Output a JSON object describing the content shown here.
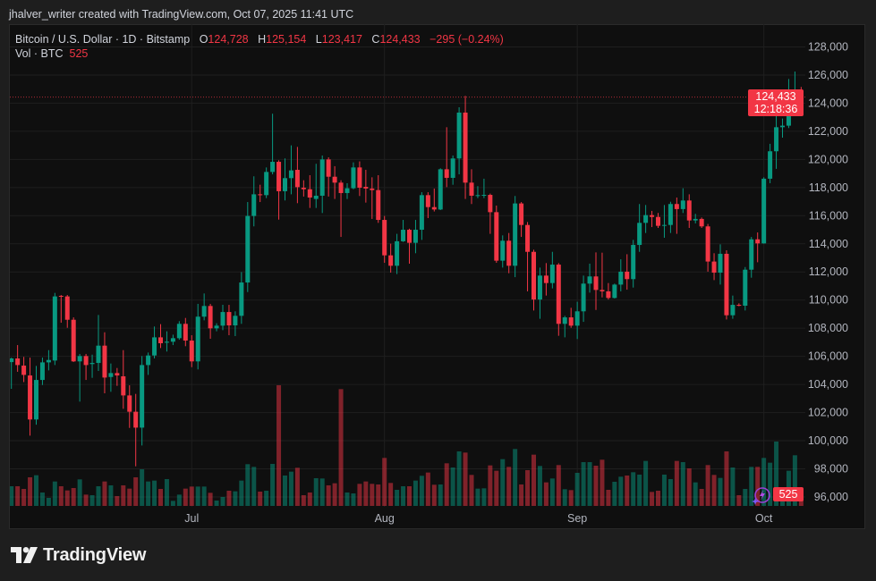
{
  "credit": "jhalver_writer created with TradingView.com, Oct 07, 2025 11:41 UTC",
  "legend": {
    "symbol": "Bitcoin / U.S. Dollar · 1D · Bitstamp",
    "open_label": "O",
    "open": "124,728",
    "high_label": "H",
    "high": "125,154",
    "low_label": "L",
    "low": "123,417",
    "close_label": "C",
    "close": "124,433",
    "change": "−295 (−0.24%)",
    "volume_label": "Vol · BTC",
    "volume": "525"
  },
  "price_badge": {
    "price": "124,433",
    "countdown": "12:18:36"
  },
  "volume_badge": "525",
  "logo_text": "TradingView",
  "icons": [
    "tradingview-logo-icon",
    "assistant-lightning-icon"
  ],
  "colors": {
    "up": "#089981",
    "down": "#f23645",
    "background": "#0f0f0f",
    "frame": "#1e1e1e"
  },
  "chart_data": {
    "type": "candlestick",
    "title": "Bitcoin / U.S. Dollar · 1D · Bitstamp",
    "interval": "1D",
    "ylim": [
      95300,
      129620
    ],
    "y_scale": "linear",
    "grid": true,
    "y_ticks": [
      128000,
      126000,
      124000,
      122000,
      120000,
      118000,
      116000,
      114000,
      112000,
      110000,
      108000,
      106000,
      104000,
      102000,
      100000,
      98000,
      96000
    ],
    "y_tick_labels": [
      "128,000",
      "126,000",
      "124,000",
      "122,000",
      "120,000",
      "118,000",
      "116,000",
      "114,000",
      "112,000",
      "110,000",
      "108,000",
      "106,000",
      "104,000",
      "102,000",
      "100,000",
      "98,000",
      "96,000"
    ],
    "x_ticks": [
      {
        "label": "Jul",
        "date": "2025-07-01"
      },
      {
        "label": "Aug",
        "date": "2025-08-01"
      },
      {
        "label": "Sep",
        "date": "2025-09-01"
      },
      {
        "label": "Oct",
        "date": "2025-10-01"
      }
    ],
    "last_price": 124433,
    "columns": [
      "date",
      "open",
      "high",
      "low",
      "close",
      "volume_btc"
    ],
    "candles": [
      [
        "2025-06-02",
        105590,
        105910,
        103690,
        105850,
        968
      ],
      [
        "2025-06-03",
        105850,
        106800,
        104900,
        105380,
        968
      ],
      [
        "2025-06-04",
        105340,
        105960,
        104170,
        104680,
        836
      ],
      [
        "2025-06-05",
        104640,
        105910,
        100360,
        101510,
        1408
      ],
      [
        "2025-06-06",
        101510,
        105320,
        101140,
        104320,
        1511
      ],
      [
        "2025-06-07",
        104320,
        105910,
        103960,
        105570,
        660
      ],
      [
        "2025-06-08",
        105570,
        106440,
        105000,
        105740,
        396
      ],
      [
        "2025-06-09",
        105700,
        110510,
        105380,
        110260,
        1203
      ],
      [
        "2025-06-10",
        110300,
        110360,
        108390,
        110260,
        968
      ],
      [
        "2025-06-11",
        110260,
        110360,
        108030,
        108600,
        763
      ],
      [
        "2025-06-12",
        108600,
        108770,
        105600,
        105640,
        880
      ],
      [
        "2025-06-13",
        105640,
        106170,
        102780,
        106020,
        1306
      ],
      [
        "2025-06-14",
        106020,
        106170,
        104320,
        105380,
        557
      ],
      [
        "2025-06-15",
        105450,
        106120,
        104470,
        105530,
        528
      ],
      [
        "2025-06-16",
        105530,
        108940,
        104960,
        106760,
        968
      ],
      [
        "2025-06-17",
        106760,
        107710,
        103370,
        104490,
        1203
      ],
      [
        "2025-06-18",
        104530,
        105490,
        103480,
        104810,
        1012
      ],
      [
        "2025-06-19",
        104810,
        105170,
        103900,
        104640,
        484
      ],
      [
        "2025-06-20",
        104580,
        106440,
        102270,
        103220,
        1012
      ],
      [
        "2025-06-21",
        103220,
        103940,
        100910,
        102060,
        851
      ],
      [
        "2025-06-22",
        102060,
        103330,
        98180,
        100930,
        1408
      ],
      [
        "2025-06-23",
        100930,
        106020,
        99660,
        105380,
        1804
      ],
      [
        "2025-06-24",
        105380,
        106270,
        104680,
        106060,
        1203
      ],
      [
        "2025-06-25",
        106060,
        108120,
        105850,
        107350,
        1247
      ],
      [
        "2025-06-26",
        107350,
        108290,
        106590,
        106930,
        836
      ],
      [
        "2025-06-27",
        106970,
        107780,
        106340,
        107040,
        1320
      ],
      [
        "2025-06-28",
        107040,
        107540,
        106800,
        107290,
        249
      ],
      [
        "2025-06-29",
        107290,
        108500,
        107180,
        108310,
        557
      ],
      [
        "2025-06-30",
        108310,
        108730,
        106720,
        107120,
        851
      ],
      [
        "2025-07-01",
        107120,
        107500,
        105230,
        105640,
        953
      ],
      [
        "2025-07-02",
        105640,
        109730,
        105070,
        108820,
        953
      ],
      [
        "2025-07-03",
        108820,
        110470,
        108560,
        109580,
        953
      ],
      [
        "2025-07-04",
        109580,
        109730,
        107250,
        107990,
        645
      ],
      [
        "2025-07-05",
        107990,
        108350,
        107780,
        108180,
        264
      ],
      [
        "2025-07-06",
        108180,
        109660,
        107860,
        109150,
        440
      ],
      [
        "2025-07-07",
        109150,
        109660,
        107500,
        108200,
        748
      ],
      [
        "2025-07-08",
        108200,
        109200,
        107440,
        108880,
        719
      ],
      [
        "2025-07-09",
        108880,
        111990,
        108310,
        111250,
        1247
      ],
      [
        "2025-07-10",
        111250,
        116970,
        110570,
        115980,
        2054
      ],
      [
        "2025-07-11",
        115980,
        118800,
        115240,
        117520,
        1922
      ],
      [
        "2025-07-12",
        117520,
        118200,
        116970,
        117460,
        704
      ],
      [
        "2025-07-13",
        117460,
        119430,
        117250,
        119110,
        748
      ],
      [
        "2025-07-14",
        119110,
        123250,
        118940,
        119830,
        2068
      ],
      [
        "2025-07-15",
        119830,
        119940,
        115720,
        117740,
        5941
      ],
      [
        "2025-07-16",
        117740,
        120070,
        117080,
        118670,
        1496
      ],
      [
        "2025-07-17",
        118670,
        121000,
        117520,
        119220,
        1687
      ],
      [
        "2025-07-18",
        119260,
        120890,
        116890,
        118030,
        1878
      ],
      [
        "2025-07-19",
        117990,
        118520,
        117360,
        117880,
        528
      ],
      [
        "2025-07-20",
        117880,
        118880,
        116550,
        117290,
        660
      ],
      [
        "2025-07-21",
        117190,
        119690,
        116550,
        117420,
        1364
      ],
      [
        "2025-07-22",
        117420,
        120280,
        116190,
        120000,
        1350
      ],
      [
        "2025-07-23",
        120000,
        120150,
        117360,
        118770,
        1012
      ],
      [
        "2025-07-24",
        118770,
        119520,
        117190,
        118350,
        1115
      ],
      [
        "2025-07-25",
        118350,
        118520,
        114490,
        117610,
        5750
      ],
      [
        "2025-07-26",
        117610,
        118310,
        117190,
        117950,
        660
      ],
      [
        "2025-07-27",
        117950,
        119790,
        117880,
        119430,
        616
      ],
      [
        "2025-07-28",
        119430,
        119860,
        117400,
        117990,
        1086
      ],
      [
        "2025-07-29",
        118050,
        119260,
        116930,
        117930,
        1203
      ],
      [
        "2025-07-30",
        117930,
        118730,
        115770,
        117820,
        1086
      ],
      [
        "2025-07-31",
        117820,
        118880,
        115490,
        115700,
        1056
      ],
      [
        "2025-08-01",
        115700,
        115980,
        112650,
        113180,
        2362
      ],
      [
        "2025-08-02",
        113180,
        114010,
        111950,
        112440,
        1130
      ],
      [
        "2025-08-03",
        112440,
        114710,
        111850,
        114180,
        792
      ],
      [
        "2025-08-04",
        114180,
        115700,
        114130,
        115000,
        968
      ],
      [
        "2025-08-05",
        115000,
        115070,
        112590,
        114070,
        968
      ],
      [
        "2025-08-06",
        114070,
        115700,
        113330,
        115000,
        1247
      ],
      [
        "2025-08-07",
        115000,
        117670,
        114280,
        117460,
        1482
      ],
      [
        "2025-08-08",
        117460,
        117670,
        115830,
        116610,
        1643
      ],
      [
        "2025-08-09",
        116610,
        117930,
        116300,
        116440,
        1042
      ],
      [
        "2025-08-10",
        116440,
        119370,
        116400,
        119300,
        1056
      ],
      [
        "2025-08-11",
        119300,
        122290,
        118030,
        118690,
        2098
      ],
      [
        "2025-08-12",
        118690,
        120280,
        118200,
        120070,
        1892
      ],
      [
        "2025-08-13",
        120070,
        123710,
        118940,
        123330,
        2685
      ],
      [
        "2025-08-14",
        123330,
        124520,
        117190,
        118350,
        2626
      ],
      [
        "2025-08-15",
        118350,
        119300,
        116830,
        117420,
        1526
      ],
      [
        "2025-08-16",
        117420,
        118100,
        117250,
        117460,
        851
      ],
      [
        "2025-08-17",
        117460,
        118630,
        117250,
        117480,
        866
      ],
      [
        "2025-08-18",
        117480,
        117570,
        114710,
        116250,
        1995
      ],
      [
        "2025-08-19",
        116250,
        116720,
        112650,
        112800,
        1731
      ],
      [
        "2025-08-20",
        112800,
        114600,
        112310,
        114220,
        2303
      ],
      [
        "2025-08-21",
        114220,
        114770,
        111910,
        112440,
        1922
      ],
      [
        "2025-08-22",
        112440,
        117400,
        111630,
        116870,
        2802
      ],
      [
        "2025-08-23",
        116870,
        116970,
        114490,
        115340,
        1056
      ],
      [
        "2025-08-24",
        115340,
        115550,
        110620,
        113430,
        1760
      ],
      [
        "2025-08-25",
        113430,
        113580,
        109260,
        110040,
        2523
      ],
      [
        "2025-08-26",
        110040,
        112310,
        108670,
        111740,
        1966
      ],
      [
        "2025-08-27",
        111740,
        112630,
        110320,
        111210,
        1159
      ],
      [
        "2025-08-28",
        111210,
        113430,
        110830,
        112520,
        1350
      ],
      [
        "2025-08-29",
        112520,
        112630,
        107460,
        108310,
        2010
      ],
      [
        "2025-08-30",
        108310,
        108880,
        107350,
        108770,
        822
      ],
      [
        "2025-08-31",
        108770,
        109450,
        108030,
        108180,
        778
      ],
      [
        "2025-09-01",
        108180,
        109880,
        107230,
        109200,
        1628
      ],
      [
        "2025-09-02",
        109200,
        111740,
        108450,
        111170,
        2156
      ],
      [
        "2025-09-03",
        111170,
        112590,
        110530,
        111680,
        2156
      ],
      [
        "2025-09-04",
        111680,
        113390,
        109300,
        110720,
        1980
      ],
      [
        "2025-09-05",
        110720,
        113370,
        110190,
        110620,
        2274
      ],
      [
        "2025-09-06",
        110620,
        111210,
        110040,
        110150,
        792
      ],
      [
        "2025-09-07",
        110150,
        111170,
        110110,
        111100,
        1188
      ],
      [
        "2025-09-08",
        111100,
        112900,
        110620,
        112020,
        1438
      ],
      [
        "2025-09-09",
        112020,
        113260,
        110740,
        111490,
        1496
      ],
      [
        "2025-09-10",
        111490,
        114280,
        110890,
        113920,
        1658
      ],
      [
        "2025-09-11",
        113920,
        116830,
        113430,
        115490,
        1540
      ],
      [
        "2025-09-12",
        115490,
        116760,
        114770,
        116040,
        2215
      ],
      [
        "2025-09-13",
        116040,
        116340,
        115190,
        115910,
        689
      ],
      [
        "2025-09-14",
        115910,
        116190,
        115130,
        115280,
        748
      ],
      [
        "2025-09-15",
        115280,
        116760,
        114430,
        115340,
        1540
      ],
      [
        "2025-09-16",
        115340,
        116990,
        114770,
        116830,
        1320
      ],
      [
        "2025-09-17",
        116830,
        117290,
        114710,
        116470,
        2215
      ],
      [
        "2025-09-18",
        116470,
        117950,
        116190,
        117080,
        2156
      ],
      [
        "2025-09-19",
        117080,
        117520,
        115130,
        115660,
        1848
      ],
      [
        "2025-09-20",
        115660,
        116130,
        115450,
        115770,
        1159
      ],
      [
        "2025-09-21",
        115770,
        115870,
        115130,
        115240,
        836
      ],
      [
        "2025-09-22",
        115240,
        115410,
        112020,
        112740,
        2010
      ],
      [
        "2025-09-23",
        112740,
        113330,
        111420,
        111950,
        1526
      ],
      [
        "2025-09-24",
        111950,
        113960,
        111100,
        113290,
        1379
      ],
      [
        "2025-09-25",
        113290,
        113540,
        108620,
        108920,
        2685
      ],
      [
        "2025-09-26",
        108920,
        110320,
        108670,
        109660,
        1892
      ],
      [
        "2025-09-27",
        109660,
        109770,
        109560,
        109600,
        528
      ],
      [
        "2025-09-28",
        109600,
        112350,
        109260,
        112160,
        836
      ],
      [
        "2025-09-29",
        112160,
        114490,
        111590,
        114320,
        1922
      ],
      [
        "2025-09-30",
        114320,
        114810,
        112690,
        114030,
        1922
      ],
      [
        "2025-10-01",
        114030,
        118730,
        114010,
        118630,
        2362
      ],
      [
        "2025-10-02",
        118630,
        121110,
        118310,
        120580,
        2127
      ],
      [
        "2025-10-03",
        120580,
        123970,
        119330,
        122290,
        3169
      ],
      [
        "2025-10-04",
        122290,
        122910,
        121550,
        122400,
        660
      ],
      [
        "2025-10-05",
        122400,
        125720,
        122230,
        123500,
        1731
      ],
      [
        "2025-10-06",
        123500,
        126250,
        123180,
        124728,
        2494
      ],
      [
        "2025-10-07",
        124728,
        125154,
        123417,
        124433,
        525
      ]
    ]
  }
}
